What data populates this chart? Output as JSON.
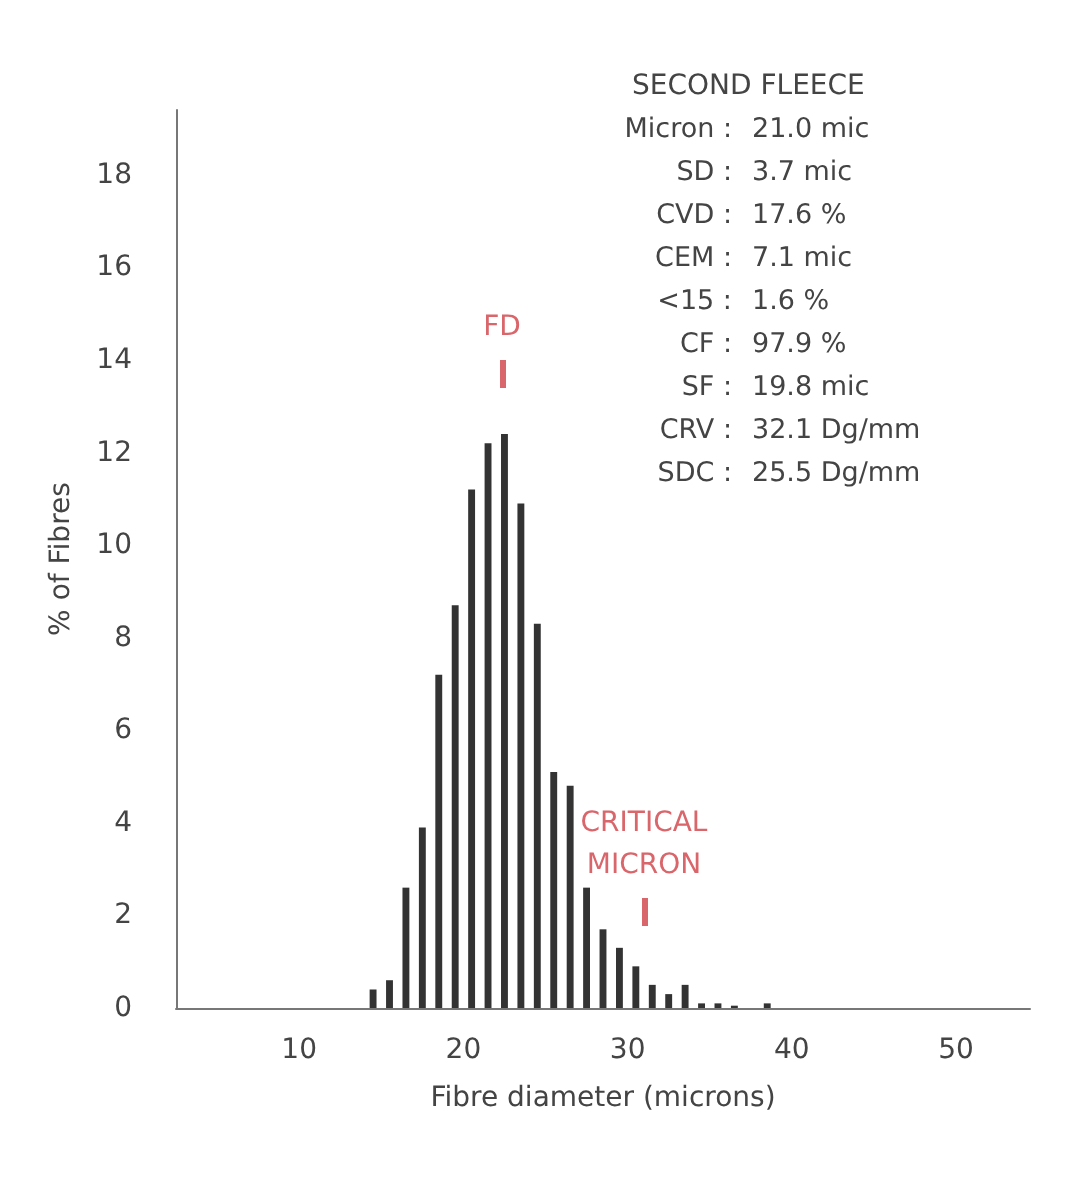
{
  "chart_data": {
    "type": "histogram",
    "title": "SECOND FLEECE",
    "xlabel": "Fibre diameter (microns)",
    "ylabel": "% of Fibres",
    "bins": [
      14,
      15,
      16,
      17,
      18,
      19,
      20,
      21,
      22,
      23,
      24,
      25,
      26,
      27,
      28,
      29,
      30,
      31,
      32,
      33,
      34,
      35,
      36,
      37,
      38,
      39
    ],
    "values": [
      0.4,
      0.6,
      2.6,
      3.9,
      7.2,
      8.7,
      11.2,
      12.2,
      12.4,
      10.9,
      8.3,
      5.1,
      4.8,
      2.6,
      1.7,
      1.3,
      0.9,
      0.5,
      0.3,
      0.5,
      0.1,
      0.1,
      0.05,
      0,
      0.1
    ],
    "color": "#333333",
    "xlim": [
      2.5,
      54.5
    ],
    "xticks": [
      10,
      20,
      30,
      40,
      50
    ],
    "ylim": [
      0,
      19.4
    ],
    "yticks": [
      0,
      2,
      4,
      6,
      8,
      10,
      12,
      14,
      16,
      18
    ],
    "grid": false,
    "annotations": [
      "FD",
      "CRITICAL MICRON",
      "Micron : 21.0 mic",
      "SD : 3.7 mic",
      "CVD : 17.6 %",
      "CEM : 7.1 mic",
      "<15 : 1.6 %",
      "CF : 97.9 %",
      "SF : 19.8 mic",
      "CRV : 32.1 Dg/mm",
      "SDC : 25.5 Dg/mm"
    ]
  }
}
